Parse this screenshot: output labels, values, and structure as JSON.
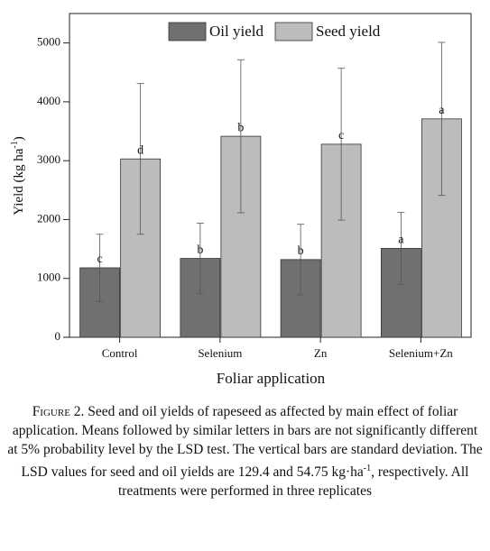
{
  "chart_data": {
    "type": "bar",
    "categories": [
      "Control",
      "Selenium",
      "Zn",
      "Selenium+Zn"
    ],
    "series": [
      {
        "name": "Oil yield",
        "color": "#707070",
        "values": [
          1180,
          1340,
          1320,
          1510
        ],
        "errors": [
          570,
          600,
          600,
          610
        ],
        "letters": [
          "c",
          "b",
          "b",
          "a"
        ]
      },
      {
        "name": "Seed yield",
        "color": "#bcbcbc",
        "values": [
          3030,
          3415,
          3280,
          3710
        ],
        "errors": [
          1280,
          1300,
          1290,
          1300
        ],
        "letters": [
          "d",
          "b",
          "c",
          "a"
        ]
      }
    ],
    "ylim": [
      0,
      5500
    ],
    "yticks": [
      0,
      1000,
      2000,
      3000,
      4000,
      5000
    ],
    "xlabel": "Foliar application",
    "ylabel": "Yield (kg ha",
    "ylabel_sup": "-1",
    "ylabel_end": ")"
  },
  "caption": [
    "Figure 2.",
    " Seed and oil yields of rapeseed as affected by main effect of foliar application. Means followed by similar letters in bars are not significantly different at 5% probability level by the LSD test. The vertical bars are standard deviation. The LSD values for seed and oil yields are 129.4 and 54.75 kg·ha",
    "-1",
    ", respectively. All treatments were performed in three replicates"
  ]
}
